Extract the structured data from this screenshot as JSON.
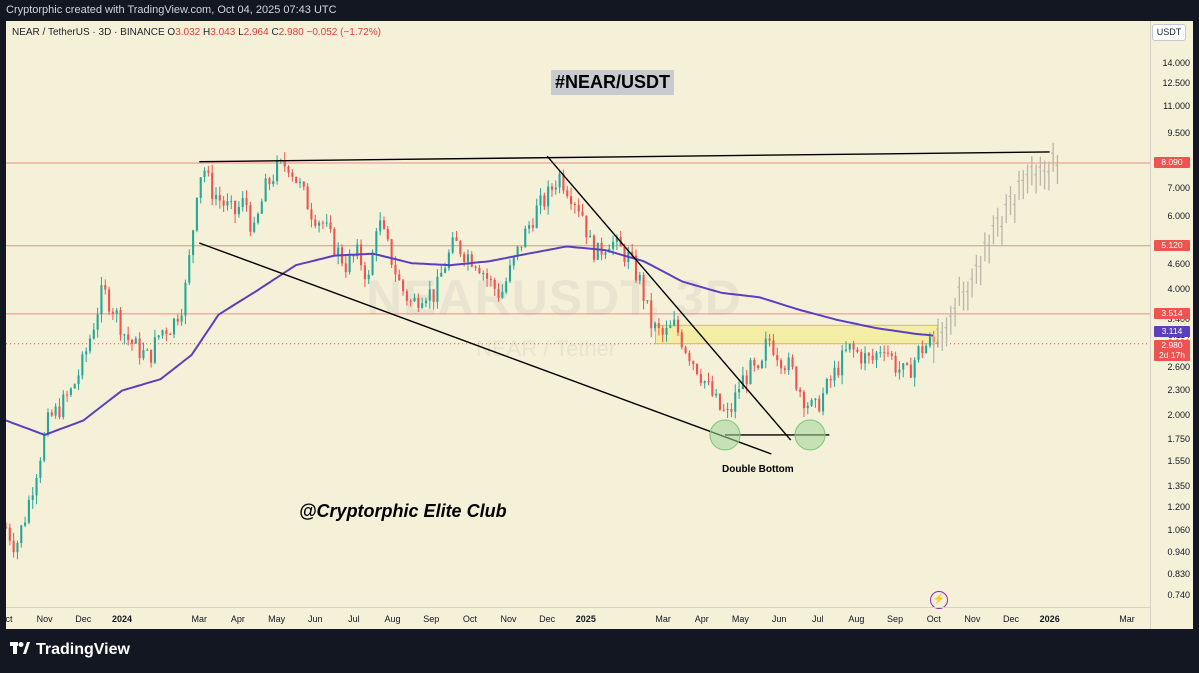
{
  "header": {
    "attribution": "Cryptorphic created with TradingView.com, Oct 04, 2025 07:43 UTC"
  },
  "legend": {
    "symbol": "NEAR / TetherUS · 3D · BINANCE",
    "o_label": "O",
    "o_value": "3.032",
    "h_label": "H",
    "h_value": "3.043",
    "l_label": "L",
    "l_value": "2.964",
    "c_label": "C",
    "c_value": "2.980",
    "change": "−0.052 (−1.72%)"
  },
  "currency": "USDT",
  "watermark": {
    "symbol": "NEARUSDT, 3D",
    "name": "NEAR / Tether"
  },
  "annotations": {
    "title": "#NEAR/USDT",
    "handle": "@Cryptorphic Elite Club",
    "pattern": "Double Bottom"
  },
  "footer": {
    "brand": "TradingView"
  },
  "colors": {
    "bull": "#26a69a",
    "bear": "#ef5350",
    "ema": "#5b3fbf",
    "trendline": "#000000",
    "level": "#f28b82",
    "projection": "#b9b6a8",
    "background": "#f5f0d8",
    "zone": "#f3eb92",
    "circle": "#9ed69a"
  },
  "chart_data": {
    "type": "candlestick",
    "symbol": "NEAR/USDT",
    "timeframe": "3D",
    "scale": "log",
    "y_ticks": [
      "14.000",
      "12.500",
      "11.000",
      "9.500",
      "8.090",
      "7.000",
      "6.000",
      "5.120",
      "4.600",
      "4.000",
      "3.514",
      "3.400",
      "3.114",
      "2.980",
      "2.600",
      "2.300",
      "2.000",
      "1.750",
      "1.550",
      "1.350",
      "1.200",
      "1.060",
      "0.940",
      "0.830",
      "0.740"
    ],
    "x_ticks": [
      {
        "label": "ct",
        "t": 0,
        "bold": false
      },
      {
        "label": "Nov",
        "t": 1,
        "bold": false
      },
      {
        "label": "Dec",
        "t": 2,
        "bold": false
      },
      {
        "label": "2024",
        "t": 3,
        "bold": true
      },
      {
        "label": "Mar",
        "t": 5,
        "bold": false
      },
      {
        "label": "Apr",
        "t": 6,
        "bold": false
      },
      {
        "label": "May",
        "t": 7,
        "bold": false
      },
      {
        "label": "Jun",
        "t": 8,
        "bold": false
      },
      {
        "label": "Jul",
        "t": 9,
        "bold": false
      },
      {
        "label": "Aug",
        "t": 10,
        "bold": false
      },
      {
        "label": "Sep",
        "t": 11,
        "bold": false
      },
      {
        "label": "Oct",
        "t": 12,
        "bold": false
      },
      {
        "label": "Nov",
        "t": 13,
        "bold": false
      },
      {
        "label": "Dec",
        "t": 14,
        "bold": false
      },
      {
        "label": "2025",
        "t": 15,
        "bold": true
      },
      {
        "label": "Mar",
        "t": 17,
        "bold": false
      },
      {
        "label": "Apr",
        "t": 18,
        "bold": false
      },
      {
        "label": "May",
        "t": 19,
        "bold": false
      },
      {
        "label": "Jun",
        "t": 20,
        "bold": false
      },
      {
        "label": "Jul",
        "t": 21,
        "bold": false
      },
      {
        "label": "Aug",
        "t": 22,
        "bold": false
      },
      {
        "label": "Sep",
        "t": 23,
        "bold": false
      },
      {
        "label": "Oct",
        "t": 24,
        "bold": false
      },
      {
        "label": "Nov",
        "t": 25,
        "bold": false
      },
      {
        "label": "Dec",
        "t": 26,
        "bold": false
      },
      {
        "label": "2026",
        "t": 27,
        "bold": true
      },
      {
        "label": "Mar",
        "t": 29,
        "bold": false
      }
    ],
    "price_key_points": [
      [
        0.0,
        1.08
      ],
      [
        0.25,
        0.97
      ],
      [
        0.5,
        1.15
      ],
      [
        0.8,
        1.5
      ],
      [
        1.1,
        1.95
      ],
      [
        1.4,
        2.1
      ],
      [
        1.7,
        2.3
      ],
      [
        2.0,
        2.7
      ],
      [
        2.3,
        3.4
      ],
      [
        2.5,
        4.0
      ],
      [
        2.8,
        3.6
      ],
      [
        3.1,
        3.1
      ],
      [
        3.4,
        2.9
      ],
      [
        3.7,
        2.75
      ],
      [
        4.0,
        3.2
      ],
      [
        4.3,
        3.3
      ],
      [
        4.6,
        3.8
      ],
      [
        4.8,
        5.2
      ],
      [
        4.95,
        7.2
      ],
      [
        5.1,
        8.0
      ],
      [
        5.3,
        7.0
      ],
      [
        5.6,
        6.5
      ],
      [
        5.9,
        6.1
      ],
      [
        6.2,
        6.6
      ],
      [
        6.4,
        5.4
      ],
      [
        6.7,
        7.0
      ],
      [
        7.0,
        7.8
      ],
      [
        7.3,
        8.1
      ],
      [
        7.6,
        7.1
      ],
      [
        7.9,
        6.2
      ],
      [
        8.2,
        5.8
      ],
      [
        8.5,
        5.1
      ],
      [
        8.8,
        4.6
      ],
      [
        9.1,
        4.9
      ],
      [
        9.4,
        4.2
      ],
      [
        9.6,
        6.0
      ],
      [
        9.9,
        5.0
      ],
      [
        10.2,
        4.1
      ],
      [
        10.5,
        3.7
      ],
      [
        10.8,
        4.0
      ],
      [
        11.1,
        3.9
      ],
      [
        11.3,
        4.5
      ],
      [
        11.6,
        5.2
      ],
      [
        11.9,
        4.9
      ],
      [
        12.2,
        4.7
      ],
      [
        12.5,
        4.2
      ],
      [
        12.8,
        3.9
      ],
      [
        13.1,
        4.6
      ],
      [
        13.4,
        5.4
      ],
      [
        13.7,
        6.2
      ],
      [
        14.0,
        6.7
      ],
      [
        14.3,
        7.6
      ],
      [
        14.6,
        6.9
      ],
      [
        14.9,
        6.2
      ],
      [
        15.1,
        5.2
      ],
      [
        15.3,
        4.9
      ],
      [
        15.6,
        5.3
      ],
      [
        15.9,
        5.0
      ],
      [
        16.1,
        4.8
      ],
      [
        16.4,
        4.2
      ],
      [
        16.7,
        3.3
      ],
      [
        17.0,
        3.1
      ],
      [
        17.3,
        3.3
      ],
      [
        17.6,
        2.9
      ],
      [
        17.9,
        2.6
      ],
      [
        18.2,
        2.3
      ],
      [
        18.5,
        2.05
      ],
      [
        18.7,
        2.0
      ],
      [
        19.0,
        2.4
      ],
      [
        19.3,
        2.6
      ],
      [
        19.5,
        2.45
      ],
      [
        19.7,
        3.1
      ],
      [
        20.0,
        2.8
      ],
      [
        20.3,
        2.6
      ],
      [
        20.6,
        2.25
      ],
      [
        20.9,
        2.05
      ],
      [
        21.2,
        2.3
      ],
      [
        21.5,
        2.6
      ],
      [
        21.8,
        2.9
      ],
      [
        22.1,
        2.8
      ],
      [
        22.4,
        2.7
      ],
      [
        22.7,
        3.0
      ],
      [
        23.0,
        2.65
      ],
      [
        23.3,
        2.5
      ],
      [
        23.6,
        2.85
      ],
      [
        23.9,
        3.0
      ],
      [
        24.1,
        2.98
      ]
    ],
    "ema": [
      [
        0.0,
        1.95
      ],
      [
        1.0,
        1.8
      ],
      [
        2.0,
        1.95
      ],
      [
        3.0,
        2.3
      ],
      [
        4.0,
        2.45
      ],
      [
        4.8,
        2.8
      ],
      [
        5.5,
        3.5
      ],
      [
        6.5,
        4.0
      ],
      [
        7.5,
        4.6
      ],
      [
        8.5,
        4.85
      ],
      [
        9.5,
        4.9
      ],
      [
        10.5,
        4.65
      ],
      [
        11.5,
        4.6
      ],
      [
        12.5,
        4.7
      ],
      [
        13.5,
        4.9
      ],
      [
        14.5,
        5.1
      ],
      [
        15.5,
        5.0
      ],
      [
        16.5,
        4.7
      ],
      [
        17.5,
        4.2
      ],
      [
        18.5,
        3.95
      ],
      [
        19.5,
        3.85
      ],
      [
        20.5,
        3.6
      ],
      [
        21.5,
        3.4
      ],
      [
        22.5,
        3.25
      ],
      [
        23.5,
        3.15
      ],
      [
        24.1,
        3.11
      ]
    ],
    "levels": [
      8.09,
      5.12,
      3.514
    ],
    "current_price": 2.98,
    "ema_value": 3.114,
    "price_labels": {
      "current": "2.980",
      "countdown": "2d 17h",
      "ema": "3.114"
    },
    "resistance_line": [
      [
        5.0,
        8.15
      ],
      [
        27.0,
        8.6
      ]
    ],
    "support_line": [
      [
        5.0,
        5.2
      ],
      [
        19.8,
        1.62
      ]
    ],
    "descending_line": [
      [
        14.0,
        8.4
      ],
      [
        20.3,
        1.75
      ]
    ],
    "double_bottom_line": [
      [
        18.6,
        1.8
      ],
      [
        21.3,
        1.8
      ]
    ],
    "double_bottom_circles": [
      [
        18.6,
        1.8
      ],
      [
        20.8,
        1.8
      ]
    ],
    "zone": [
      [
        16.8,
        3.3
      ],
      [
        24.1,
        2.98
      ]
    ],
    "projection": [
      [
        24.0,
        3.0
      ],
      [
        24.5,
        3.6
      ],
      [
        25.0,
        4.2
      ],
      [
        25.5,
        5.2
      ],
      [
        26.0,
        6.5
      ],
      [
        26.4,
        7.2
      ],
      [
        26.8,
        7.8
      ],
      [
        27.2,
        8.1
      ]
    ]
  }
}
